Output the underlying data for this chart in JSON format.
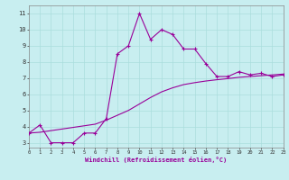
{
  "xlabel": "Windchill (Refroidissement éolien,°C)",
  "bg_color": "#c8eef0",
  "line_color": "#990099",
  "x_main": [
    0,
    1,
    2,
    3,
    4,
    5,
    6,
    7,
    8,
    9,
    10,
    11,
    12,
    13,
    14,
    15,
    16,
    17,
    18,
    19,
    20,
    21,
    22,
    23
  ],
  "y_main": [
    3.6,
    4.1,
    3.0,
    3.0,
    3.0,
    3.6,
    3.6,
    4.5,
    8.5,
    9.0,
    11.0,
    9.4,
    10.0,
    9.7,
    8.8,
    8.8,
    7.9,
    7.1,
    7.1,
    7.4,
    7.2,
    7.3,
    7.1,
    7.2
  ],
  "x_trend": [
    0,
    1,
    2,
    3,
    4,
    5,
    6,
    7,
    8,
    9,
    10,
    11,
    12,
    13,
    14,
    15,
    16,
    17,
    18,
    19,
    20,
    21,
    22,
    23
  ],
  "y_trend": [
    3.6,
    3.65,
    3.75,
    3.85,
    3.95,
    4.05,
    4.15,
    4.4,
    4.7,
    5.0,
    5.4,
    5.8,
    6.15,
    6.4,
    6.6,
    6.72,
    6.82,
    6.9,
    6.97,
    7.05,
    7.1,
    7.15,
    7.2,
    7.25
  ],
  "xlim": [
    0,
    23
  ],
  "ylim": [
    2.7,
    11.5
  ],
  "yticks": [
    3,
    4,
    5,
    6,
    7,
    8,
    9,
    10,
    11
  ],
  "xticks": [
    0,
    1,
    2,
    3,
    4,
    5,
    6,
    7,
    8,
    9,
    10,
    11,
    12,
    13,
    14,
    15,
    16,
    17,
    18,
    19,
    20,
    21,
    22,
    23
  ],
  "grid_color": "#aadddd",
  "marker": "+"
}
